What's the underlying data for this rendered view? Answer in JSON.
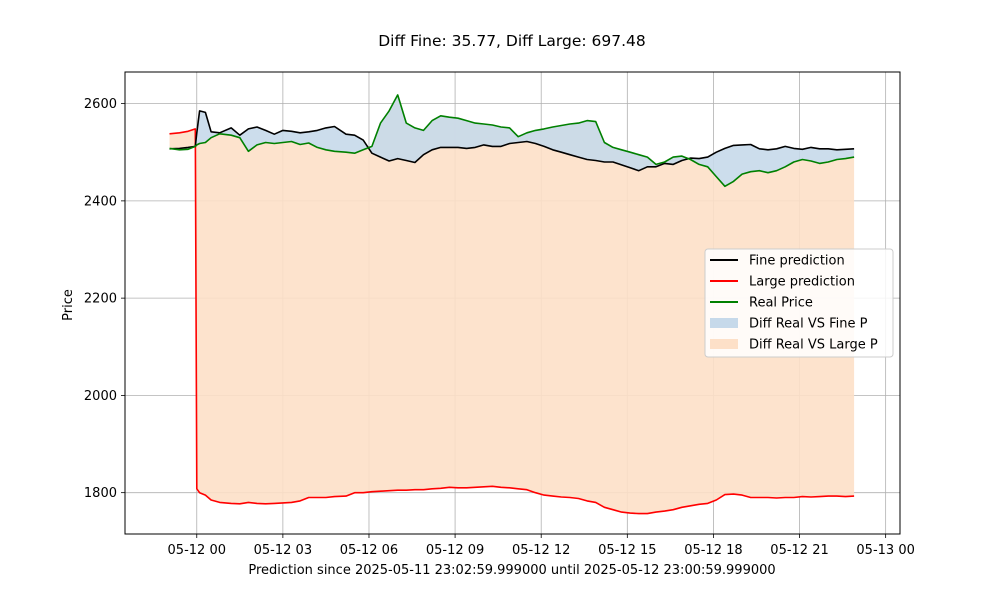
{
  "chart_data": {
    "type": "line",
    "title": "Diff Fine: 35.77, Diff Large: 697.48",
    "xlabel": "Prediction since 2025-05-11 23:02:59.999000 until 2025-05-12 23:00:59.999000",
    "ylabel": "Price",
    "x_tick_labels": [
      "05-12 00",
      "05-12 03",
      "05-12 06",
      "05-12 09",
      "05-12 12",
      "05-12 15",
      "05-12 18",
      "05-12 21",
      "05-13 00"
    ],
    "y_tick_labels": [
      "1800",
      "2000",
      "2200",
      "2400",
      "2600"
    ],
    "x_unit": "hours since 2025-05-12 00:00",
    "xlim": [
      -2.5,
      24.5
    ],
    "ylim": [
      1715,
      2665
    ],
    "grid": true,
    "legend_position": "center-right",
    "x": [
      -0.95,
      -0.6,
      -0.3,
      -0.05,
      0.0,
      0.1,
      0.3,
      0.5,
      0.8,
      1.2,
      1.5,
      1.8,
      2.1,
      2.4,
      2.7,
      3.0,
      3.3,
      3.6,
      3.9,
      4.2,
      4.5,
      4.8,
      5.2,
      5.5,
      5.8,
      6.1,
      6.4,
      6.7,
      7.0,
      7.3,
      7.6,
      7.9,
      8.2,
      8.5,
      8.8,
      9.1,
      9.4,
      9.7,
      10.0,
      10.3,
      10.6,
      10.9,
      11.2,
      11.5,
      11.8,
      12.1,
      12.4,
      12.7,
      13.0,
      13.3,
      13.6,
      13.9,
      14.2,
      14.5,
      14.8,
      15.1,
      15.4,
      15.7,
      16.0,
      16.3,
      16.6,
      16.9,
      17.2,
      17.5,
      17.8,
      18.1,
      18.4,
      18.7,
      19.0,
      19.3,
      19.6,
      19.9,
      20.2,
      20.5,
      20.8,
      21.1,
      21.4,
      21.7,
      22.0,
      22.3,
      22.6,
      22.9
    ],
    "series": [
      {
        "name": "Fine prediction",
        "color": "#000000",
        "values": [
          2507,
          2508,
          2510,
          2512,
          2540,
          2585,
          2582,
          2542,
          2540,
          2550,
          2535,
          2548,
          2552,
          2545,
          2537,
          2545,
          2543,
          2540,
          2542,
          2545,
          2550,
          2553,
          2537,
          2535,
          2525,
          2498,
          2490,
          2482,
          2487,
          2483,
          2479,
          2495,
          2505,
          2510,
          2510,
          2510,
          2508,
          2510,
          2515,
          2512,
          2512,
          2518,
          2520,
          2522,
          2518,
          2512,
          2505,
          2500,
          2495,
          2490,
          2485,
          2483,
          2480,
          2480,
          2474,
          2468,
          2462,
          2470,
          2470,
          2477,
          2475,
          2483,
          2488,
          2487,
          2490,
          2500,
          2508,
          2514,
          2515,
          2516,
          2507,
          2505,
          2507,
          2512,
          2508,
          2506,
          2510,
          2507,
          2507,
          2505,
          2506,
          2507
        ]
      },
      {
        "name": "Large prediction",
        "color": "#ff0000",
        "values": [
          2538,
          2540,
          2543,
          2548,
          1808,
          1800,
          1795,
          1785,
          1780,
          1778,
          1777,
          1780,
          1778,
          1777,
          1778,
          1779,
          1780,
          1783,
          1790,
          1790,
          1790,
          1792,
          1793,
          1800,
          1800,
          1802,
          1803,
          1804,
          1805,
          1805,
          1806,
          1806,
          1808,
          1809,
          1811,
          1810,
          1810,
          1811,
          1812,
          1813,
          1811,
          1810,
          1808,
          1806,
          1800,
          1795,
          1793,
          1791,
          1790,
          1788,
          1783,
          1780,
          1770,
          1765,
          1760,
          1758,
          1757,
          1757,
          1760,
          1762,
          1765,
          1770,
          1773,
          1776,
          1778,
          1785,
          1796,
          1797,
          1795,
          1790,
          1790,
          1790,
          1789,
          1790,
          1790,
          1792,
          1791,
          1792,
          1793,
          1793,
          1792,
          1793
        ]
      },
      {
        "name": "Real Price",
        "color": "#008000",
        "values": [
          2508,
          2505,
          2506,
          2512,
          2515,
          2518,
          2520,
          2530,
          2538,
          2535,
          2530,
          2502,
          2515,
          2520,
          2518,
          2520,
          2522,
          2516,
          2519,
          2510,
          2505,
          2502,
          2500,
          2498,
          2505,
          2512,
          2560,
          2585,
          2618,
          2560,
          2550,
          2545,
          2565,
          2575,
          2572,
          2570,
          2565,
          2560,
          2558,
          2556,
          2552,
          2550,
          2532,
          2540,
          2545,
          2548,
          2552,
          2555,
          2558,
          2560,
          2565,
          2563,
          2520,
          2510,
          2505,
          2500,
          2495,
          2490,
          2475,
          2480,
          2490,
          2492,
          2485,
          2475,
          2470,
          2450,
          2430,
          2440,
          2455,
          2460,
          2462,
          2458,
          2462,
          2470,
          2480,
          2485,
          2482,
          2477,
          2480,
          2485,
          2487,
          2490
        ]
      }
    ],
    "fills": [
      {
        "name": "Diff Real VS Fine P",
        "between": [
          "Real Price",
          "Fine prediction"
        ],
        "color": "#c6d9ea"
      },
      {
        "name": "Diff Real VS Large P",
        "between": [
          "Real Price",
          "Large prediction"
        ],
        "color": "#fde0c8"
      }
    ]
  }
}
